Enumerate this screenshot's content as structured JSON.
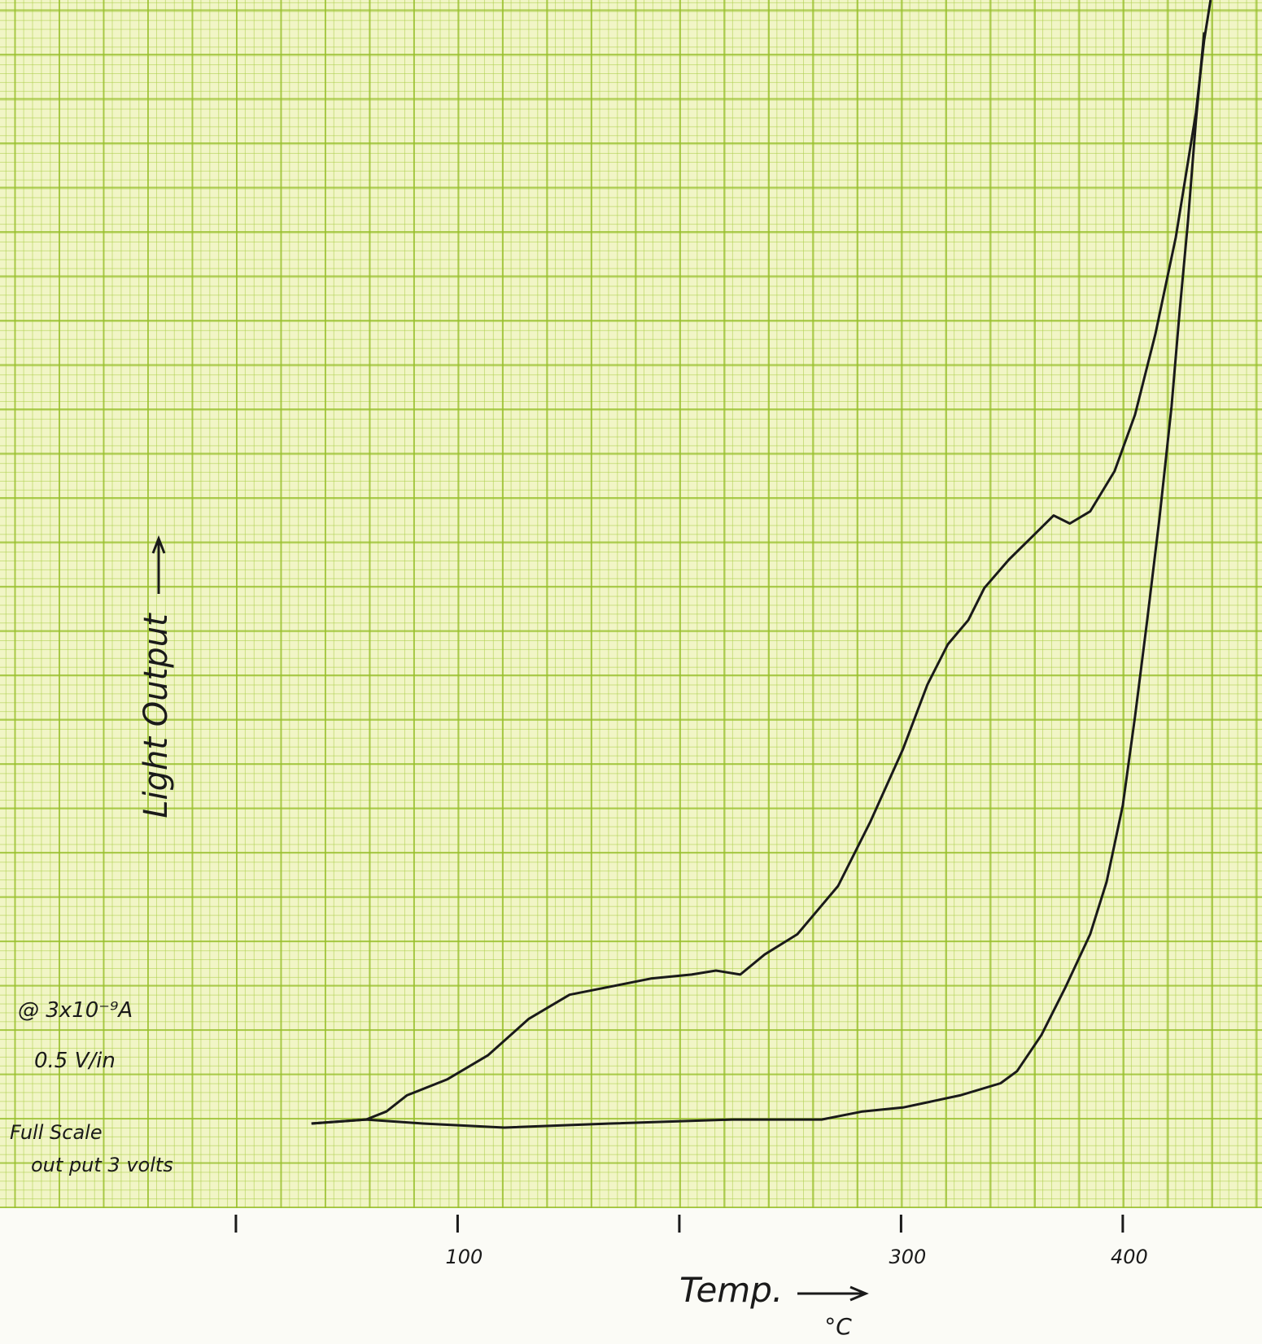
{
  "chart_data": {
    "type": "line",
    "ylabel": "Light Output",
    "xlabel": "Temp.",
    "xunit": "°C",
    "annotations": [
      "@ 3x10⁻⁹A",
      "0.5 V/in",
      "Full Scale",
      "out put 3 volts"
    ],
    "xlim": [
      -106.4,
      462.8
    ],
    "ylim": [
      0,
      3
    ],
    "xticks": [
      100,
      300,
      400
    ],
    "xminor_ticks": [
      0,
      200
    ],
    "series": [
      {
        "color": "#1a1a1a",
        "x": [
          34.1,
          58.7,
          67.9,
          77.1,
          95.4,
          113.8,
          132.1,
          150.5,
          168.8,
          187.2,
          205.5,
          216.5,
          227.5,
          238.5,
          253.2,
          271.6,
          286.2,
          300.9,
          311.9,
          321.1,
          330.3,
          337.6,
          348.6,
          359.6,
          368.8,
          376.1,
          385.3,
          396.3,
          405.5,
          414.7,
          423.9,
          433.0,
          436.7,
          439.6
        ],
        "values": [
          0.21,
          0.22,
          0.24,
          0.28,
          0.32,
          0.38,
          0.47,
          0.53,
          0.55,
          0.57,
          0.58,
          0.59,
          0.58,
          0.63,
          0.68,
          0.8,
          0.96,
          1.14,
          1.3,
          1.4,
          1.46,
          1.54,
          1.61,
          1.67,
          1.72,
          1.7,
          1.73,
          1.83,
          1.97,
          2.17,
          2.41,
          2.72,
          2.9,
          3.0
        ]
      },
      {
        "color": "#1a1a1a",
        "x": [
          34.1,
          58.7,
          84.4,
          121.1,
          168.8,
          223.9,
          264.2,
          282.6,
          300.9,
          326.6,
          344.9,
          352.3,
          363.3,
          374.3,
          385.3,
          392.7,
          400.0,
          405.5,
          411.0,
          416.5,
          422.0,
          425.7,
          429.4,
          433.0,
          436.7
        ],
        "values": [
          0.21,
          0.22,
          0.21,
          0.2,
          0.21,
          0.22,
          0.22,
          0.24,
          0.25,
          0.28,
          0.31,
          0.34,
          0.43,
          0.55,
          0.68,
          0.81,
          1.0,
          1.22,
          1.46,
          1.71,
          1.99,
          2.23,
          2.45,
          2.7,
          2.92
        ]
      }
    ]
  }
}
